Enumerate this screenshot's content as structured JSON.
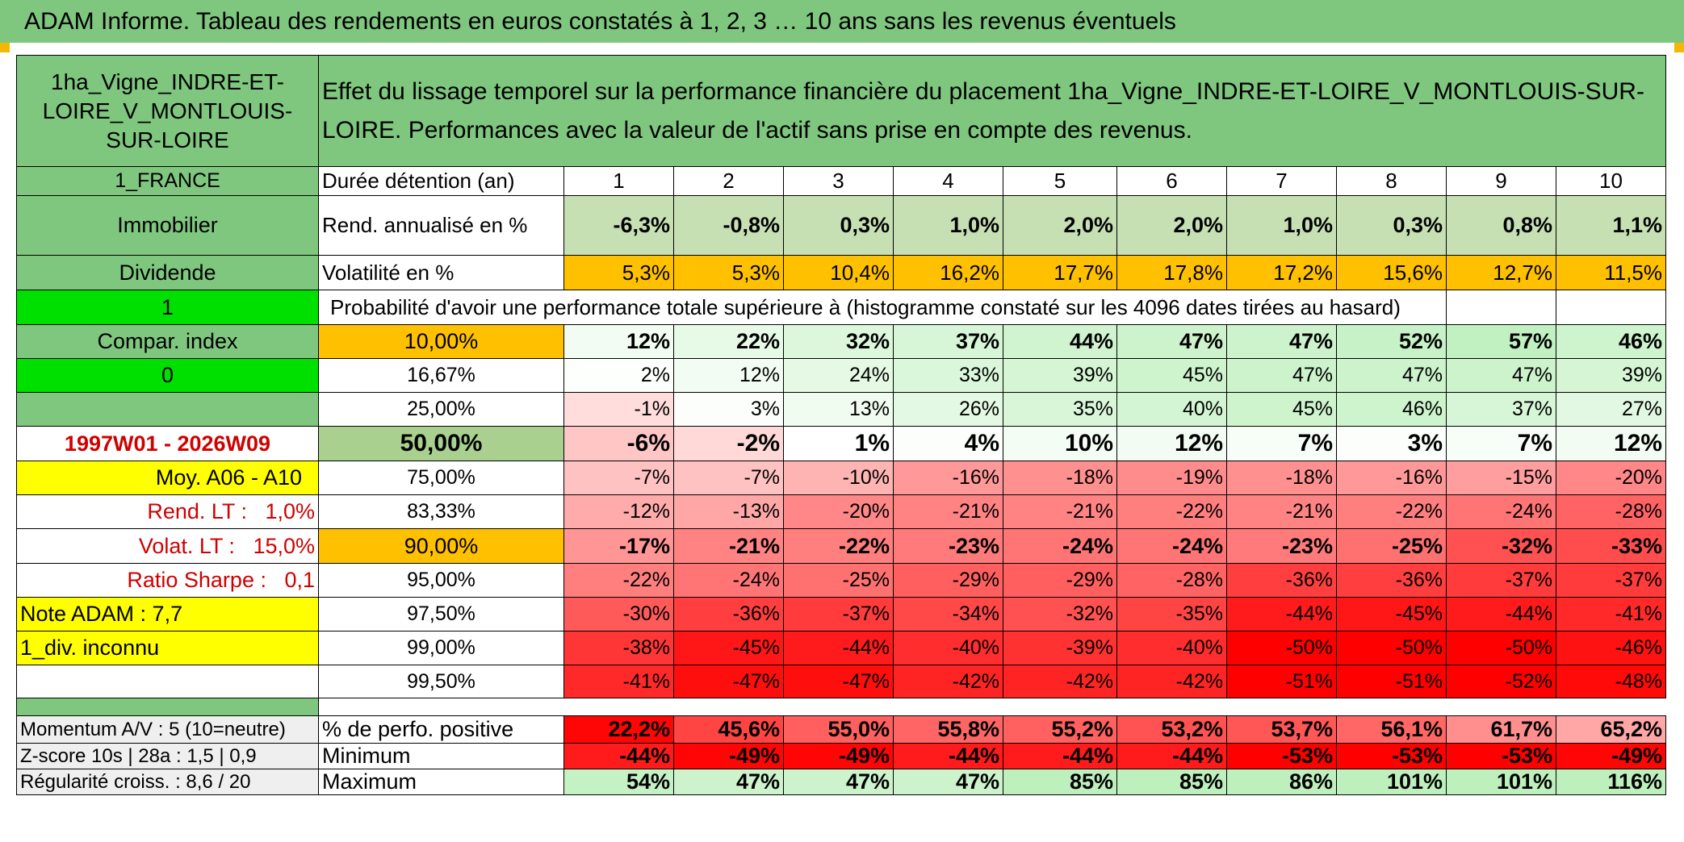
{
  "header": {
    "title": "ADAM Informe. Tableau des rendements en euros constatés à 1, 2, 3 … 10 ans sans les revenus éventuels"
  },
  "left": {
    "asset_name": "1ha_Vigne_INDRE-ET-LOIRE_V_MONTLOUIS-SUR-LOIRE",
    "country": "1_FRANCE",
    "category": "Immobilier",
    "income_type": "Dividende",
    "value_1": "1",
    "compar_index": "Compar. index",
    "value_0": "0",
    "period": "1997W01 - 2026W09",
    "moy": "Moy. A06 - A10",
    "rend_lt": "Rend. LT :   1,0%",
    "volat_lt": "Volat. LT :   15,0%",
    "ratio_sharpe": "Ratio Sharpe :   0,1",
    "note_adam": "Note ADAM : 7,7",
    "div": "1_div. inconnu",
    "momentum": "Momentum A/V : 5 (10=neutre)",
    "zscore": "Z-score 10s | 28a : 1,5 | 0,9",
    "regularite": "Régularité croiss. : 8,6 / 20"
  },
  "description": "Effet du lissage temporel sur la performance financière du placement 1ha_Vigne_INDRE-ET-LOIRE_V_MONTLOUIS-SUR-LOIRE. Performances avec la valeur de l'actif sans prise en compte des revenus.",
  "duration": {
    "label": "Durée détention (an)",
    "years": [
      "1",
      "2",
      "3",
      "4",
      "5",
      "6",
      "7",
      "8",
      "9",
      "10"
    ]
  },
  "rend": {
    "label": "Rend. annualisé en %",
    "values": [
      "-6,3%",
      "-0,8%",
      "0,3%",
      "1,0%",
      "2,0%",
      "2,0%",
      "1,0%",
      "0,3%",
      "0,8%",
      "1,1%"
    ]
  },
  "volat": {
    "label": "Volatilité en %",
    "values": [
      "5,3%",
      "5,3%",
      "10,4%",
      "16,2%",
      "17,7%",
      "17,8%",
      "17,2%",
      "15,6%",
      "12,7%",
      "11,5%"
    ]
  },
  "prob_title": "Probabilité d'avoir une performance totale supérieure à (histogramme constaté sur les 4096 dates tirées au hasard)",
  "quantiles": [
    {
      "label": "10,00%",
      "values": [
        "12%",
        "22%",
        "32%",
        "37%",
        "44%",
        "47%",
        "47%",
        "52%",
        "57%",
        "46%"
      ]
    },
    {
      "label": "16,67%",
      "values": [
        "2%",
        "12%",
        "24%",
        "33%",
        "39%",
        "45%",
        "47%",
        "47%",
        "47%",
        "39%"
      ]
    },
    {
      "label": "25,00%",
      "values": [
        "-1%",
        "3%",
        "13%",
        "26%",
        "35%",
        "40%",
        "45%",
        "46%",
        "37%",
        "27%"
      ]
    },
    {
      "label": "50,00%",
      "values": [
        "-6%",
        "-2%",
        "1%",
        "4%",
        "10%",
        "12%",
        "7%",
        "3%",
        "7%",
        "12%"
      ]
    },
    {
      "label": "75,00%",
      "values": [
        "-7%",
        "-7%",
        "-10%",
        "-16%",
        "-18%",
        "-19%",
        "-18%",
        "-16%",
        "-15%",
        "-20%"
      ]
    },
    {
      "label": "83,33%",
      "values": [
        "-12%",
        "-13%",
        "-20%",
        "-21%",
        "-21%",
        "-22%",
        "-21%",
        "-22%",
        "-24%",
        "-28%"
      ]
    },
    {
      "label": "90,00%",
      "values": [
        "-17%",
        "-21%",
        "-22%",
        "-23%",
        "-24%",
        "-24%",
        "-23%",
        "-25%",
        "-32%",
        "-33%"
      ]
    },
    {
      "label": "95,00%",
      "values": [
        "-22%",
        "-24%",
        "-25%",
        "-29%",
        "-29%",
        "-28%",
        "-36%",
        "-36%",
        "-37%",
        "-37%"
      ]
    },
    {
      "label": "97,50%",
      "values": [
        "-30%",
        "-36%",
        "-37%",
        "-34%",
        "-32%",
        "-35%",
        "-44%",
        "-45%",
        "-44%",
        "-41%"
      ]
    },
    {
      "label": "99,00%",
      "values": [
        "-38%",
        "-45%",
        "-44%",
        "-40%",
        "-39%",
        "-40%",
        "-50%",
        "-50%",
        "-50%",
        "-46%"
      ]
    },
    {
      "label": "99,50%",
      "values": [
        "-41%",
        "-47%",
        "-47%",
        "-42%",
        "-42%",
        "-42%",
        "-51%",
        "-51%",
        "-52%",
        "-48%"
      ]
    }
  ],
  "pos": {
    "label": "% de perfo. positive",
    "values": [
      "22,2%",
      "45,6%",
      "55,0%",
      "55,8%",
      "55,2%",
      "53,2%",
      "53,7%",
      "56,1%",
      "61,7%",
      "65,2%"
    ]
  },
  "min": {
    "label": "Minimum",
    "values": [
      "-44%",
      "-49%",
      "-49%",
      "-44%",
      "-44%",
      "-44%",
      "-53%",
      "-53%",
      "-53%",
      "-49%"
    ]
  },
  "max": {
    "label": "Maximum",
    "values": [
      "54%",
      "47%",
      "47%",
      "47%",
      "85%",
      "85%",
      "86%",
      "101%",
      "101%",
      "116%"
    ]
  },
  "colors": {
    "header_green": "#7fc77f",
    "orange": "#ffc000",
    "bright_green": "#00e000",
    "yellow": "#ffff00",
    "accent": "#f5b800"
  }
}
